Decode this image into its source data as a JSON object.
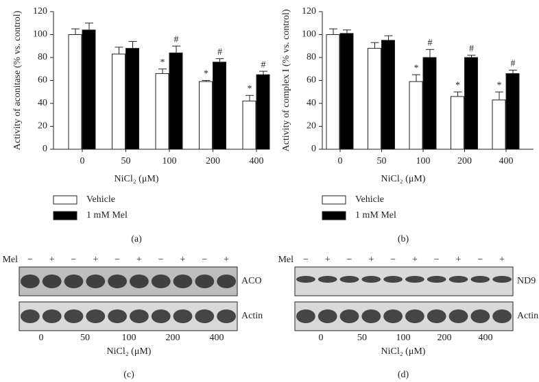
{
  "chart_data": [
    {
      "type": "bar",
      "panel": "(a)",
      "ylabel": "Activity of aconitase (% vs. control)",
      "xlabel": "NiCl₂ (μM)",
      "categories": [
        "0",
        "50",
        "100",
        "200",
        "400"
      ],
      "series": [
        {
          "name": "Vehicle",
          "color": "#ffffff",
          "values": [
            100,
            83,
            66,
            59,
            42
          ],
          "errors": [
            5,
            6,
            4,
            1,
            5
          ],
          "markers": [
            null,
            null,
            "*",
            "*",
            "*"
          ]
        },
        {
          "name": "1 mM Mel",
          "color": "#000000",
          "values": [
            104,
            88,
            84,
            76,
            65
          ],
          "errors": [
            6,
            6,
            6,
            3,
            3
          ],
          "markers": [
            null,
            null,
            "#",
            "#",
            "#"
          ]
        }
      ],
      "ylim": [
        0,
        120
      ],
      "yticks": [
        0,
        20,
        40,
        60,
        80,
        100,
        120
      ]
    },
    {
      "type": "bar",
      "panel": "(b)",
      "ylabel": "Activity of complex I (% vs. control)",
      "xlabel": "NiCl₂ (μM)",
      "categories": [
        "0",
        "50",
        "100",
        "200",
        "400"
      ],
      "series": [
        {
          "name": "Vehicle",
          "color": "#ffffff",
          "values": [
            100,
            88,
            59,
            46,
            43
          ],
          "errors": [
            5,
            5,
            6,
            4,
            7
          ],
          "markers": [
            null,
            null,
            "*",
            "*",
            "*"
          ]
        },
        {
          "name": "1 mM Mel",
          "color": "#000000",
          "values": [
            101,
            95,
            80,
            80,
            66
          ],
          "errors": [
            3,
            4,
            7,
            2,
            3
          ],
          "markers": [
            null,
            null,
            "#",
            "#",
            "#"
          ]
        }
      ],
      "ylim": [
        0,
        120
      ],
      "yticks": [
        0,
        20,
        40,
        60,
        80,
        100,
        120
      ]
    }
  ],
  "blots": [
    {
      "panel": "(c)",
      "row_label": "Mel",
      "lanes": [
        "−",
        "+",
        "−",
        "+",
        "−",
        "+",
        "−",
        "+",
        "−",
        "+"
      ],
      "proteins": [
        "ACO",
        "Actin"
      ],
      "categories": [
        "0",
        "50",
        "100",
        "200",
        "400"
      ],
      "xlabel": "NiCl₂ (μM)"
    },
    {
      "panel": "(d)",
      "row_label": "Mel",
      "lanes": [
        "−",
        "+",
        "−",
        "+",
        "−",
        "+",
        "−",
        "+",
        "−",
        "+"
      ],
      "proteins": [
        "ND9",
        "Actin"
      ],
      "categories": [
        "0",
        "50",
        "100",
        "200",
        "400"
      ],
      "xlabel": "NiCl₂ (μM)"
    }
  ]
}
